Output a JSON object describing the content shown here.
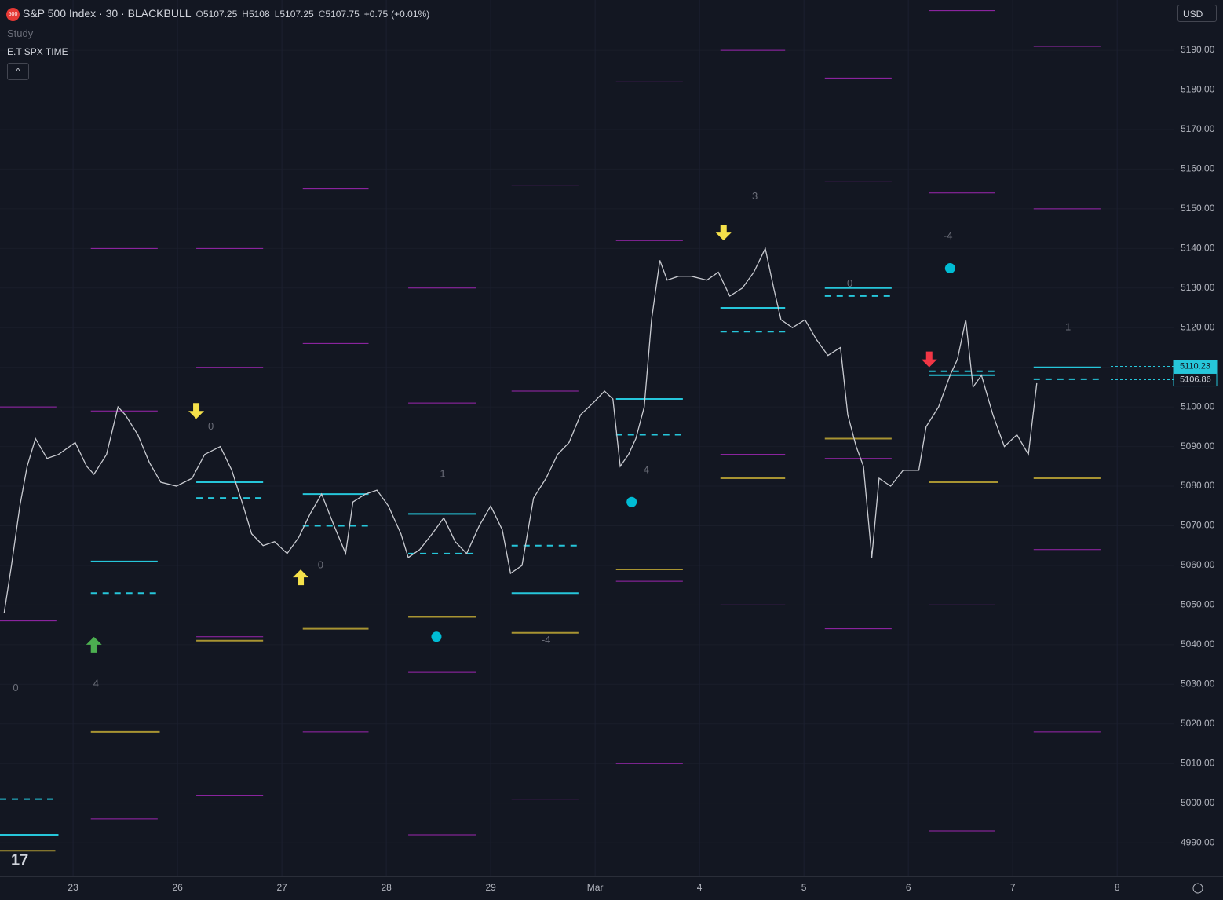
{
  "chart_data": {
    "type": "line",
    "title": "S&P 500 Index · 30 · BLACKBULL",
    "symbol_badge": "500",
    "ohlc": [
      {
        "label": "O",
        "value": 5107.25
      },
      {
        "label": "H",
        "value": 5108.0
      },
      {
        "label": "L",
        "value": 5107.25
      },
      {
        "label": "C",
        "value": 5107.75
      }
    ],
    "change": {
      "value": 0.75,
      "label": "+0.75"
    },
    "change_pct": {
      "value": 0.01,
      "label": "(+0.01%)"
    },
    "study_label": "Study",
    "indicator_label": "E.T SPX TIME",
    "currency": "USD",
    "xlim": [
      -0.7,
      10.54
    ],
    "xticks": [
      {
        "value": 0,
        "label": "23"
      },
      {
        "value": 1,
        "label": "26"
      },
      {
        "value": 2,
        "label": "27"
      },
      {
        "value": 3,
        "label": "28"
      },
      {
        "value": 4,
        "label": "29"
      },
      {
        "value": 5,
        "label": "Mar"
      },
      {
        "value": 6,
        "label": "4"
      },
      {
        "value": 7,
        "label": "5"
      },
      {
        "value": 8,
        "label": "6"
      },
      {
        "value": 9,
        "label": "7"
      },
      {
        "value": 10,
        "label": "8"
      }
    ],
    "ylim": [
      4981.5,
      5202.7
    ],
    "yticks": [
      {
        "value": 4990,
        "label": "4990.00"
      },
      {
        "value": 5000,
        "label": "5000.00"
      },
      {
        "value": 5010,
        "label": "5010.00"
      },
      {
        "value": 5020,
        "label": "5020.00"
      },
      {
        "value": 5030,
        "label": "5030.00"
      },
      {
        "value": 5040,
        "label": "5040.00"
      },
      {
        "value": 5050,
        "label": "5050.00"
      },
      {
        "value": 5060,
        "label": "5060.00"
      },
      {
        "value": 5070,
        "label": "5070.00"
      },
      {
        "value": 5080,
        "label": "5080.00"
      },
      {
        "value": 5090,
        "label": "5090.00"
      },
      {
        "value": 5100,
        "label": "5100.00"
      },
      {
        "value": 5110,
        "label": "5110.00"
      },
      {
        "value": 5120,
        "label": "5120.00"
      },
      {
        "value": 5130,
        "label": "5130.00"
      },
      {
        "value": 5140,
        "label": "5140.00"
      },
      {
        "value": 5150,
        "label": "5150.00"
      },
      {
        "value": 5160,
        "label": "5160.00"
      },
      {
        "value": 5170,
        "label": "5170.00"
      },
      {
        "value": 5180,
        "label": "5180.00"
      },
      {
        "value": 5190,
        "label": "5190.00"
      }
    ],
    "series": [
      {
        "color": "#c9cbd1",
        "x": [
          -0.66,
          -0.59,
          -0.51,
          -0.44,
          -0.36,
          -0.25,
          -0.14,
          0.02,
          0.13,
          0.2,
          0.32,
          0.43,
          0.5,
          0.62,
          0.73,
          0.84,
          0.99,
          1.14,
          1.26,
          1.41,
          1.52,
          1.63,
          1.71,
          1.82,
          1.93,
          2.05,
          2.16,
          2.27,
          2.38,
          2.5,
          2.61,
          2.68,
          2.8,
          2.91,
          3.02,
          3.14,
          3.21,
          3.32,
          3.44,
          3.55,
          3.66,
          3.77,
          3.89,
          4.0,
          4.11,
          4.19,
          4.3,
          4.41,
          4.53,
          4.64,
          4.75,
          4.86,
          4.98,
          5.09,
          5.17,
          5.24,
          5.32,
          5.39,
          5.47,
          5.54,
          5.62,
          5.69,
          5.8,
          5.92,
          6.07,
          6.18,
          6.29,
          6.41,
          6.52,
          6.63,
          6.71,
          6.78,
          6.89,
          7.01,
          7.12,
          7.23,
          7.35,
          7.42,
          7.5,
          7.57,
          7.65,
          7.72,
          7.83,
          7.95,
          8.1,
          8.17,
          8.29,
          8.4,
          8.47,
          8.55,
          8.62,
          8.7,
          8.81,
          8.92,
          9.04,
          9.15,
          9.23
        ],
        "values": [
          5048,
          5060,
          5075,
          5085,
          5092,
          5087,
          5088,
          5091,
          5085,
          5083,
          5088,
          5100,
          5098,
          5093,
          5086,
          5081,
          5080,
          5082,
          5088,
          5090,
          5084,
          5075,
          5068,
          5065,
          5066,
          5063,
          5067,
          5073,
          5078,
          5070,
          5063,
          5076,
          5078,
          5079,
          5075,
          5068,
          5062,
          5064,
          5068,
          5072,
          5066,
          5063,
          5070,
          5075,
          5069,
          5058,
          5060,
          5077,
          5082,
          5088,
          5091,
          5098,
          5101,
          5104,
          5102,
          5085,
          5088,
          5092,
          5100,
          5122,
          5137,
          5132,
          5133,
          5133,
          5132,
          5134,
          5128,
          5130,
          5134,
          5140,
          5130,
          5122,
          5120,
          5122,
          5117,
          5113,
          5115,
          5098,
          5090,
          5085,
          5062,
          5082,
          5080,
          5084,
          5084,
          5095,
          5100,
          5108,
          5112,
          5122,
          5105,
          5108,
          5098,
          5090,
          5093,
          5088,
          5106
        ]
      }
    ],
    "levels": [
      {
        "color": "#9c27b0",
        "style": "thin",
        "segments": [
          {
            "x": [
              -0.7,
              -0.16
            ],
            "value": 5100
          },
          {
            "x": [
              -0.7,
              -0.16
            ],
            "value": 5046
          },
          {
            "x": [
              0.17,
              0.81
            ],
            "value": 5140
          },
          {
            "x": [
              0.17,
              0.81
            ],
            "value": 5099
          },
          {
            "x": [
              0.17,
              0.81
            ],
            "value": 4996
          },
          {
            "x": [
              1.18,
              1.82
            ],
            "value": 5140
          },
          {
            "x": [
              1.18,
              1.82
            ],
            "value": 5110
          },
          {
            "x": [
              1.18,
              1.82
            ],
            "value": 5042
          },
          {
            "x": [
              1.18,
              1.82
            ],
            "value": 5002
          },
          {
            "x": [
              2.2,
              2.83
            ],
            "value": 5155
          },
          {
            "x": [
              2.2,
              2.83
            ],
            "value": 5116
          },
          {
            "x": [
              2.2,
              2.83
            ],
            "value": 5048
          },
          {
            "x": [
              2.2,
              2.83
            ],
            "value": 5018
          },
          {
            "x": [
              3.21,
              3.86
            ],
            "value": 5130
          },
          {
            "x": [
              3.21,
              3.86
            ],
            "value": 5101
          },
          {
            "x": [
              3.21,
              3.86
            ],
            "value": 5033
          },
          {
            "x": [
              3.21,
              3.86
            ],
            "value": 4992
          },
          {
            "x": [
              4.2,
              4.84
            ],
            "value": 5156
          },
          {
            "x": [
              4.2,
              4.84
            ],
            "value": 5104
          },
          {
            "x": [
              4.2,
              4.84
            ],
            "value": 5001
          },
          {
            "x": [
              5.2,
              5.84
            ],
            "value": 5182
          },
          {
            "x": [
              5.2,
              5.84
            ],
            "value": 5142
          },
          {
            "x": [
              5.2,
              5.84
            ],
            "value": 5056
          },
          {
            "x": [
              5.2,
              5.84
            ],
            "value": 5010
          },
          {
            "x": [
              6.2,
              6.82
            ],
            "value": 5190
          },
          {
            "x": [
              6.2,
              6.82
            ],
            "value": 5158
          },
          {
            "x": [
              6.2,
              6.82
            ],
            "value": 5088
          },
          {
            "x": [
              6.2,
              6.82
            ],
            "value": 5050
          },
          {
            "x": [
              7.2,
              7.84
            ],
            "value": 5183
          },
          {
            "x": [
              7.2,
              7.84
            ],
            "value": 5157
          },
          {
            "x": [
              7.2,
              7.84
            ],
            "value": 5087
          },
          {
            "x": [
              7.2,
              7.84
            ],
            "value": 5044
          },
          {
            "x": [
              8.2,
              8.83
            ],
            "value": 5200
          },
          {
            "x": [
              8.2,
              8.83
            ],
            "value": 5154
          },
          {
            "x": [
              8.2,
              8.83
            ],
            "value": 5050
          },
          {
            "x": [
              8.2,
              8.83
            ],
            "value": 4993
          },
          {
            "x": [
              9.2,
              9.84
            ],
            "value": 5191
          },
          {
            "x": [
              9.2,
              9.84
            ],
            "value": 5150
          },
          {
            "x": [
              9.2,
              9.84
            ],
            "value": 5064
          },
          {
            "x": [
              9.2,
              9.84
            ],
            "value": 5018
          }
        ]
      },
      {
        "color": "#a89432",
        "style": "solid",
        "segments": [
          {
            "x": [
              -0.7,
              -0.17
            ],
            "value": 4988
          },
          {
            "x": [
              0.17,
              0.83
            ],
            "value": 5018
          },
          {
            "x": [
              1.18,
              1.82
            ],
            "value": 5041
          },
          {
            "x": [
              2.2,
              2.83
            ],
            "value": 5044
          },
          {
            "x": [
              3.21,
              3.86
            ],
            "value": 5047
          },
          {
            "x": [
              4.2,
              4.84
            ],
            "value": 5043
          },
          {
            "x": [
              5.2,
              5.84
            ],
            "value": 5059
          },
          {
            "x": [
              6.2,
              6.82
            ],
            "value": 5082
          },
          {
            "x": [
              7.2,
              7.84
            ],
            "value": 5092
          },
          {
            "x": [
              8.2,
              8.86
            ],
            "value": 5081
          },
          {
            "x": [
              9.2,
              9.84
            ],
            "value": 5082
          }
        ]
      },
      {
        "color": "#26c6da",
        "style": "solid",
        "segments": [
          {
            "x": [
              -0.7,
              -0.14
            ],
            "value": 4992
          },
          {
            "x": [
              0.17,
              0.81
            ],
            "value": 5061
          },
          {
            "x": [
              1.18,
              1.82
            ],
            "value": 5081
          },
          {
            "x": [
              2.2,
              2.83
            ],
            "value": 5078
          },
          {
            "x": [
              3.21,
              3.86
            ],
            "value": 5073
          },
          {
            "x": [
              4.2,
              4.84
            ],
            "value": 5053
          },
          {
            "x": [
              5.2,
              5.84
            ],
            "value": 5102
          },
          {
            "x": [
              6.2,
              6.82
            ],
            "value": 5125
          },
          {
            "x": [
              7.2,
              7.84
            ],
            "value": 5130
          },
          {
            "x": [
              8.2,
              8.83
            ],
            "value": 5108
          },
          {
            "x": [
              9.2,
              9.84
            ],
            "value": 5110
          }
        ]
      },
      {
        "color": "#26c6da",
        "style": "dashed",
        "segments": [
          {
            "x": [
              -0.7,
              -0.14
            ],
            "value": 5001
          },
          {
            "x": [
              0.17,
              0.81
            ],
            "value": 5053
          },
          {
            "x": [
              1.18,
              1.82
            ],
            "value": 5077
          },
          {
            "x": [
              2.2,
              2.83
            ],
            "value": 5070
          },
          {
            "x": [
              3.21,
              3.86
            ],
            "value": 5063
          },
          {
            "x": [
              4.2,
              4.84
            ],
            "value": 5065
          },
          {
            "x": [
              5.2,
              5.84
            ],
            "value": 5093
          },
          {
            "x": [
              6.2,
              6.82
            ],
            "value": 5119
          },
          {
            "x": [
              7.2,
              7.84
            ],
            "value": 5128
          },
          {
            "x": [
              8.2,
              8.83
            ],
            "value": 5109
          },
          {
            "x": [
              9.2,
              9.84
            ],
            "value": 5107
          }
        ]
      }
    ],
    "signals": [
      {
        "kind": "down",
        "color": "#f5e14a",
        "x": 1.18,
        "y": 5099
      },
      {
        "kind": "down",
        "color": "#f5e14a",
        "x": 6.23,
        "y": 5144
      },
      {
        "kind": "up",
        "color": "#f5e14a",
        "x": 2.18,
        "y": 5057
      },
      {
        "kind": "up",
        "color": "#4caf50",
        "x": 0.2,
        "y": 5040
      },
      {
        "kind": "down",
        "color": "#f23645",
        "x": 8.2,
        "y": 5112
      },
      {
        "kind": "dot",
        "color": "#00bcd4",
        "x": 3.48,
        "y": 5042
      },
      {
        "kind": "dot",
        "color": "#00bcd4",
        "x": 5.35,
        "y": 5076
      },
      {
        "kind": "dot",
        "color": "#00bcd4",
        "x": 8.4,
        "y": 5135
      }
    ],
    "annotations": [
      {
        "text": "0",
        "x": -0.55,
        "y": 5029
      },
      {
        "text": "4",
        "x": 0.22,
        "y": 5030
      },
      {
        "text": "0",
        "x": 1.32,
        "y": 5095
      },
      {
        "text": "0",
        "x": 2.37,
        "y": 5060
      },
      {
        "text": "1",
        "x": 3.54,
        "y": 5083
      },
      {
        "text": "-4",
        "x": 4.53,
        "y": 5041
      },
      {
        "text": "4",
        "x": 5.49,
        "y": 5084
      },
      {
        "text": "3",
        "x": 6.53,
        "y": 5153
      },
      {
        "text": "0",
        "x": 7.44,
        "y": 5131
      },
      {
        "text": "-4",
        "x": 8.38,
        "y": 5143
      },
      {
        "text": "1",
        "x": 9.53,
        "y": 5120
      }
    ],
    "price_labels": [
      5110.23,
      5106.86
    ]
  }
}
